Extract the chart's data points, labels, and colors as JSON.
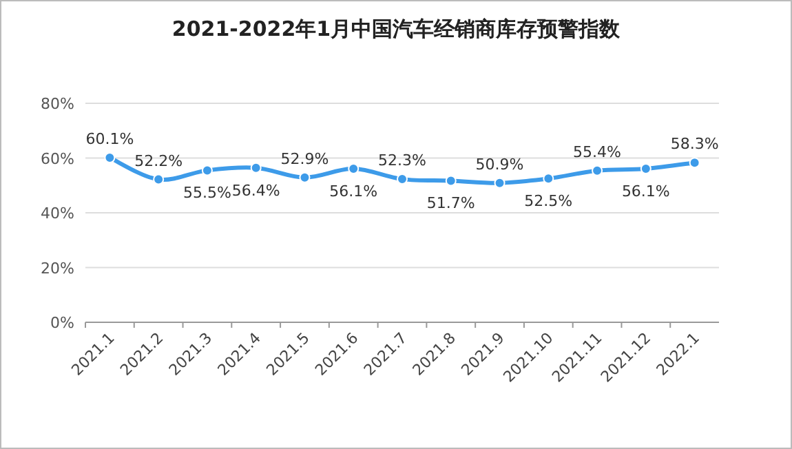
{
  "chart_data": {
    "type": "line",
    "title": "2021-2022年1月中国汽车经销商库存预警指数",
    "categories": [
      "2021.1",
      "2021.2",
      "2021.3",
      "2021.4",
      "2021.5",
      "2021.6",
      "2021.7",
      "2021.8",
      "2021.9",
      "2021.10",
      "2021.11",
      "2021.12",
      "2022.1"
    ],
    "series": [
      {
        "color": "#3d9be9",
        "values": [
          60.1,
          52.2,
          55.5,
          56.4,
          52.9,
          56.1,
          52.3,
          51.7,
          50.9,
          52.5,
          55.4,
          56.1,
          58.3
        ],
        "value_labels": [
          "60.1%",
          "52.2%",
          "55.5%",
          "56.4%",
          "52.9%",
          "56.1%",
          "52.3%",
          "51.7%",
          "50.9%",
          "52.5%",
          "55.4%",
          "56.1%",
          "58.3%"
        ]
      }
    ],
    "ylim": [
      0,
      80
    ],
    "yticks": [
      {
        "value": 0,
        "label": "0%"
      },
      {
        "value": 20,
        "label": "20%"
      },
      {
        "value": 40,
        "label": "40%"
      },
      {
        "value": 60,
        "label": "60%"
      },
      {
        "value": 80,
        "label": "80%"
      }
    ],
    "grid": "y",
    "marker": "circle",
    "line_style": "solid"
  }
}
